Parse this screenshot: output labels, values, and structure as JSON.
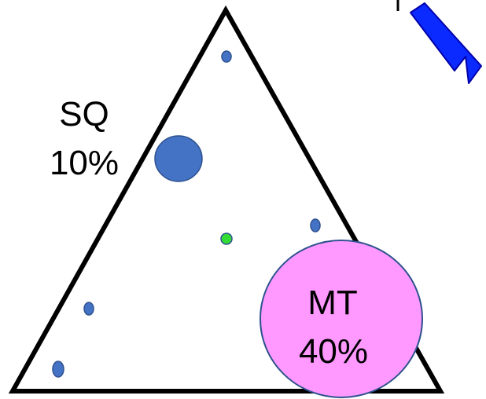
{
  "labels": {
    "sq_name": "SQ",
    "sq_percent": "10%",
    "mt_name": "MT",
    "mt_percent": "40%"
  },
  "colors": {
    "outline": "#000000",
    "dot_fill": "#4472c4",
    "dot_stroke": "#2f528f",
    "green_dot": "#33dd33",
    "mt_circle_fill": "#ff99ff",
    "mt_circle_stroke": "#2f528f",
    "arrow_fill": "#0a2aff",
    "arrow_stroke": "#0000aa"
  },
  "icons": {
    "corner_arrow": "arrow-icon"
  }
}
